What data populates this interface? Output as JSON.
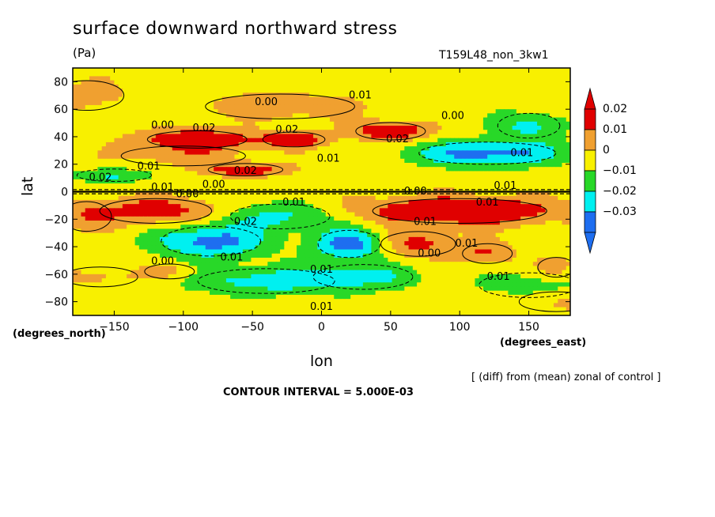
{
  "header": {
    "title": "surface downward northward stress",
    "units": "(Pa)",
    "run_name": "T159L48_non_3kw1"
  },
  "footer": {
    "y_units": "(degrees_north)",
    "x_units": "(degrees_east)",
    "note": "[ (diff) from (mean) zonal of control ]",
    "contour_interval": "CONTOUR INTERVAL = 5.000E-03"
  },
  "chart_data": {
    "type": "heatmap",
    "xlabel": "lon",
    "ylabel": "lat",
    "xlim": [
      -180,
      180
    ],
    "ylim": [
      -90,
      90
    ],
    "x_ticks": [
      -150,
      -100,
      -50,
      0,
      50,
      100,
      150
    ],
    "y_ticks": [
      80,
      60,
      40,
      20,
      0,
      -20,
      -40,
      -60,
      -80
    ],
    "colorbar": {
      "labels": [
        "0.02",
        "0.01",
        "0",
        "−0.01",
        "−0.02",
        "−0.03"
      ],
      "bins": [
        {
          "color": "#e00000"
        },
        {
          "color": "#f0a030"
        },
        {
          "color": "#f8f000"
        },
        {
          "color": "#28d828"
        },
        {
          "color": "#00f0f0"
        },
        {
          "color": "#1e6ef0"
        }
      ],
      "extend": "both"
    },
    "contour_labels": [
      {
        "text": "0.01",
        "lon": 28,
        "lat": 70
      },
      {
        "text": "0.00",
        "lon": -40,
        "lat": 65
      },
      {
        "text": "0.00",
        "lon": -115,
        "lat": 48
      },
      {
        "text": "0.02",
        "lon": -85,
        "lat": 46
      },
      {
        "text": "0.02",
        "lon": -25,
        "lat": 45
      },
      {
        "text": "0.02",
        "lon": 55,
        "lat": 38
      },
      {
        "text": "0.00",
        "lon": 95,
        "lat": 55
      },
      {
        "text": "0.01",
        "lon": 5,
        "lat": 24
      },
      {
        "text": "0.01",
        "lon": -125,
        "lat": 18
      },
      {
        "text": "0.02",
        "lon": -55,
        "lat": 15
      },
      {
        "text": "0.01",
        "lon": 145,
        "lat": 28
      },
      {
        "text": "0.02",
        "lon": -160,
        "lat": 10
      },
      {
        "text": "0.01",
        "lon": -115,
        "lat": 3
      },
      {
        "text": "0.00",
        "lon": -97,
        "lat": -2
      },
      {
        "text": "0.00",
        "lon": -78,
        "lat": 5
      },
      {
        "text": "0.00",
        "lon": 68,
        "lat": 0
      },
      {
        "text": "0.01",
        "lon": 133,
        "lat": 4
      },
      {
        "text": "0.01",
        "lon": 120,
        "lat": -8
      },
      {
        "text": "0.01",
        "lon": -20,
        "lat": -8
      },
      {
        "text": "0.02",
        "lon": -55,
        "lat": -22
      },
      {
        "text": "0.01",
        "lon": 75,
        "lat": -22
      },
      {
        "text": "0.01",
        "lon": 105,
        "lat": -38
      },
      {
        "text": "0.00",
        "lon": 78,
        "lat": -45
      },
      {
        "text": "0.00",
        "lon": -115,
        "lat": -51
      },
      {
        "text": "0.01",
        "lon": -65,
        "lat": -48
      },
      {
        "text": "0.01",
        "lon": 0,
        "lat": -57
      },
      {
        "text": "0.01",
        "lon": 128,
        "lat": -62
      },
      {
        "text": "0.01",
        "lon": 0,
        "lat": -84
      }
    ]
  }
}
